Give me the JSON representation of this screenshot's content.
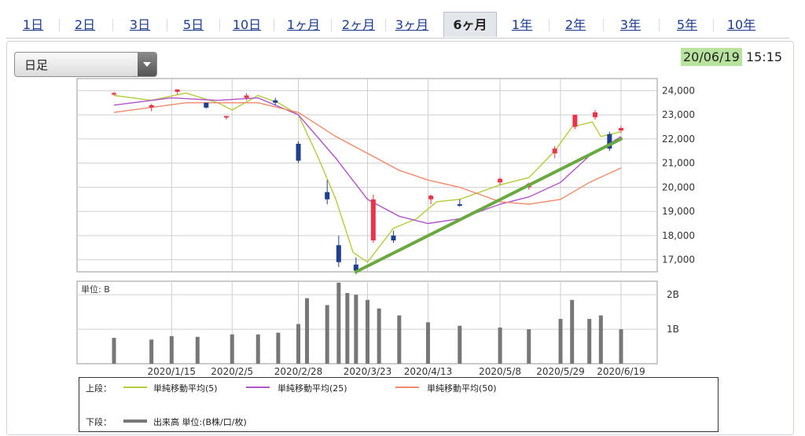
{
  "tabs": [
    {
      "label": "1日",
      "active": false
    },
    {
      "label": "2日",
      "active": false
    },
    {
      "label": "3日",
      "active": false
    },
    {
      "label": "5日",
      "active": false
    },
    {
      "label": "10日",
      "active": false
    },
    {
      "label": "1ヶ月",
      "active": false
    },
    {
      "label": "2ヶ月",
      "active": false
    },
    {
      "label": "3ヶ月",
      "active": false
    },
    {
      "label": "6ヶ月",
      "active": true
    },
    {
      "label": "1年",
      "active": false
    },
    {
      "label": "2年",
      "active": false
    },
    {
      "label": "3年",
      "active": false
    },
    {
      "label": "5年",
      "active": false
    },
    {
      "label": "10年",
      "active": false
    }
  ],
  "period_select": {
    "value": "日足"
  },
  "timestamp": {
    "date": "20/06/19",
    "time": "15:15"
  },
  "legend": {
    "upper_label": "上段：",
    "ma5": "単純移動平均(5)",
    "ma25": "単純移動平均(25)",
    "ma50": "単純移動平均(50)",
    "lower_label": "下段：",
    "volume": "出来高 単位:(B株/口/枚)"
  },
  "colors": {
    "up": "#e8354a",
    "down": "#1f3f8f",
    "ma5": "#b5cc3c",
    "ma25": "#b055c8",
    "ma50": "#ee8a6a",
    "trendline": "#6aa840",
    "volume": "#777777",
    "highlight": "#b8e39e"
  },
  "chart_data": [
    {
      "type": "line",
      "y_axis_side": "right",
      "ylim": [
        16500,
        24500
      ],
      "ytick_labels": [
        "24,000",
        "23,000",
        "22,000",
        "21,000",
        "20,000",
        "19,000",
        "18,000",
        "17,000"
      ],
      "xtick_labels": [
        "2020/1/15",
        "2020/2/5",
        "2020/2/28",
        "2020/3/23",
        "2020/4/13",
        "2020/5/8",
        "2020/5/29",
        "2020/6/19"
      ],
      "x_range": [
        "2019/12/26",
        "2020/6/19"
      ],
      "series": [
        {
          "name": "単純移動平均(5)",
          "x": [
            "12/26",
            "1/8",
            "1/20",
            "1/31",
            "2/5",
            "2/14",
            "2/21",
            "2/28",
            "3/6",
            "3/12",
            "3/18",
            "3/23",
            "4/1",
            "4/9",
            "4/16",
            "4/24",
            "5/8",
            "5/18",
            "5/27",
            "6/2",
            "6/9",
            "6/12",
            "6/19"
          ],
          "y": [
            23800,
            23600,
            23900,
            23500,
            23200,
            23800,
            23500,
            23000,
            21200,
            19500,
            17300,
            16900,
            18300,
            18700,
            19400,
            19500,
            20100,
            20400,
            21500,
            22500,
            22700,
            22100,
            22300
          ]
        },
        {
          "name": "単純移動平均(25)",
          "x": [
            "12/26",
            "1/15",
            "1/31",
            "2/14",
            "2/28",
            "3/12",
            "3/23",
            "4/3",
            "4/13",
            "4/24",
            "5/8",
            "5/18",
            "5/29",
            "6/8",
            "6/19"
          ],
          "y": [
            23400,
            23700,
            23600,
            23700,
            23000,
            21200,
            19500,
            18800,
            18500,
            18700,
            19300,
            19600,
            20200,
            21300,
            22100
          ]
        },
        {
          "name": "単純移動平均(50)",
          "x": [
            "12/26",
            "1/20",
            "2/14",
            "2/28",
            "3/12",
            "3/23",
            "4/3",
            "4/13",
            "4/24",
            "5/8",
            "5/18",
            "5/29",
            "6/8",
            "6/19"
          ],
          "y": [
            23100,
            23500,
            23500,
            23100,
            22100,
            21400,
            20700,
            20300,
            20000,
            19400,
            19300,
            19500,
            20200,
            20800
          ]
        }
      ],
      "candles": [
        {
          "date": "12/26",
          "open": 23850,
          "high": 23950,
          "low": 23800,
          "close": 23900
        },
        {
          "date": "1/8",
          "open": 23300,
          "high": 23450,
          "low": 23150,
          "close": 23400
        },
        {
          "date": "1/17",
          "open": 23950,
          "high": 24050,
          "low": 23850,
          "close": 24050
        },
        {
          "date": "1/27",
          "open": 23500,
          "high": 23500,
          "low": 23250,
          "close": 23300
        },
        {
          "date": "2/3",
          "open": 22900,
          "high": 22950,
          "low": 22800,
          "close": 22950
        },
        {
          "date": "2/10",
          "open": 23700,
          "high": 23900,
          "low": 23600,
          "close": 23800
        },
        {
          "date": "2/20",
          "open": 23600,
          "high": 23700,
          "low": 23400,
          "close": 23500
        },
        {
          "date": "2/28",
          "open": 21800,
          "high": 21900,
          "low": 21000,
          "close": 21100
        },
        {
          "date": "3/9",
          "open": 19800,
          "high": 20300,
          "low": 19300,
          "close": 19500
        },
        {
          "date": "3/13",
          "open": 17600,
          "high": 18000,
          "low": 16700,
          "close": 16900
        },
        {
          "date": "3/19",
          "open": 16800,
          "high": 17100,
          "low": 16400,
          "close": 16550
        },
        {
          "date": "3/25",
          "open": 17800,
          "high": 19700,
          "low": 17700,
          "close": 19500
        },
        {
          "date": "4/1",
          "open": 18000,
          "high": 18200,
          "low": 17700,
          "close": 17800
        },
        {
          "date": "4/14",
          "open": 19500,
          "high": 19700,
          "low": 19300,
          "close": 19650
        },
        {
          "date": "4/24",
          "open": 19300,
          "high": 19500,
          "low": 19200,
          "close": 19250
        },
        {
          "date": "5/8",
          "open": 20200,
          "high": 20400,
          "low": 20100,
          "close": 20350
        },
        {
          "date": "5/18",
          "open": 20000,
          "high": 20200,
          "low": 19900,
          "close": 20150
        },
        {
          "date": "5/27",
          "open": 21400,
          "high": 21700,
          "low": 21200,
          "close": 21600
        },
        {
          "date": "6/3",
          "open": 22500,
          "high": 23000,
          "low": 22400,
          "close": 23000
        },
        {
          "date": "6/10",
          "open": 22900,
          "high": 23200,
          "low": 22800,
          "close": 23100
        },
        {
          "date": "6/15",
          "open": 22200,
          "high": 22300,
          "low": 21500,
          "close": 21600
        },
        {
          "date": "6/19",
          "open": 22350,
          "high": 22550,
          "low": 22250,
          "close": 22450
        }
      ],
      "trendline": {
        "from": {
          "x": "3/19",
          "y": 16500
        },
        "to": {
          "x": "6/19",
          "y": 22000
        }
      },
      "grid": true
    },
    {
      "type": "bar",
      "title": "単位: B",
      "y_axis_side": "right",
      "ylim": [
        0,
        2.3
      ],
      "ytick_labels": [
        "2B",
        "1B"
      ],
      "x": [
        "12/26",
        "1/8",
        "1/15",
        "1/24",
        "2/5",
        "2/14",
        "2/21",
        "2/28",
        "3/2",
        "3/9",
        "3/13",
        "3/16",
        "3/19",
        "3/23",
        "3/27",
        "4/3",
        "4/13",
        "4/24",
        "5/8",
        "5/18",
        "5/29",
        "6/2",
        "6/8",
        "6/12",
        "6/19"
      ],
      "values": [
        0.75,
        0.7,
        0.8,
        0.78,
        0.85,
        0.85,
        0.9,
        1.15,
        1.9,
        1.7,
        2.35,
        2.05,
        2.0,
        1.85,
        1.6,
        1.4,
        1.2,
        1.1,
        1.05,
        1.0,
        1.3,
        1.85,
        1.3,
        1.4,
        1.0
      ],
      "grid": true
    }
  ]
}
